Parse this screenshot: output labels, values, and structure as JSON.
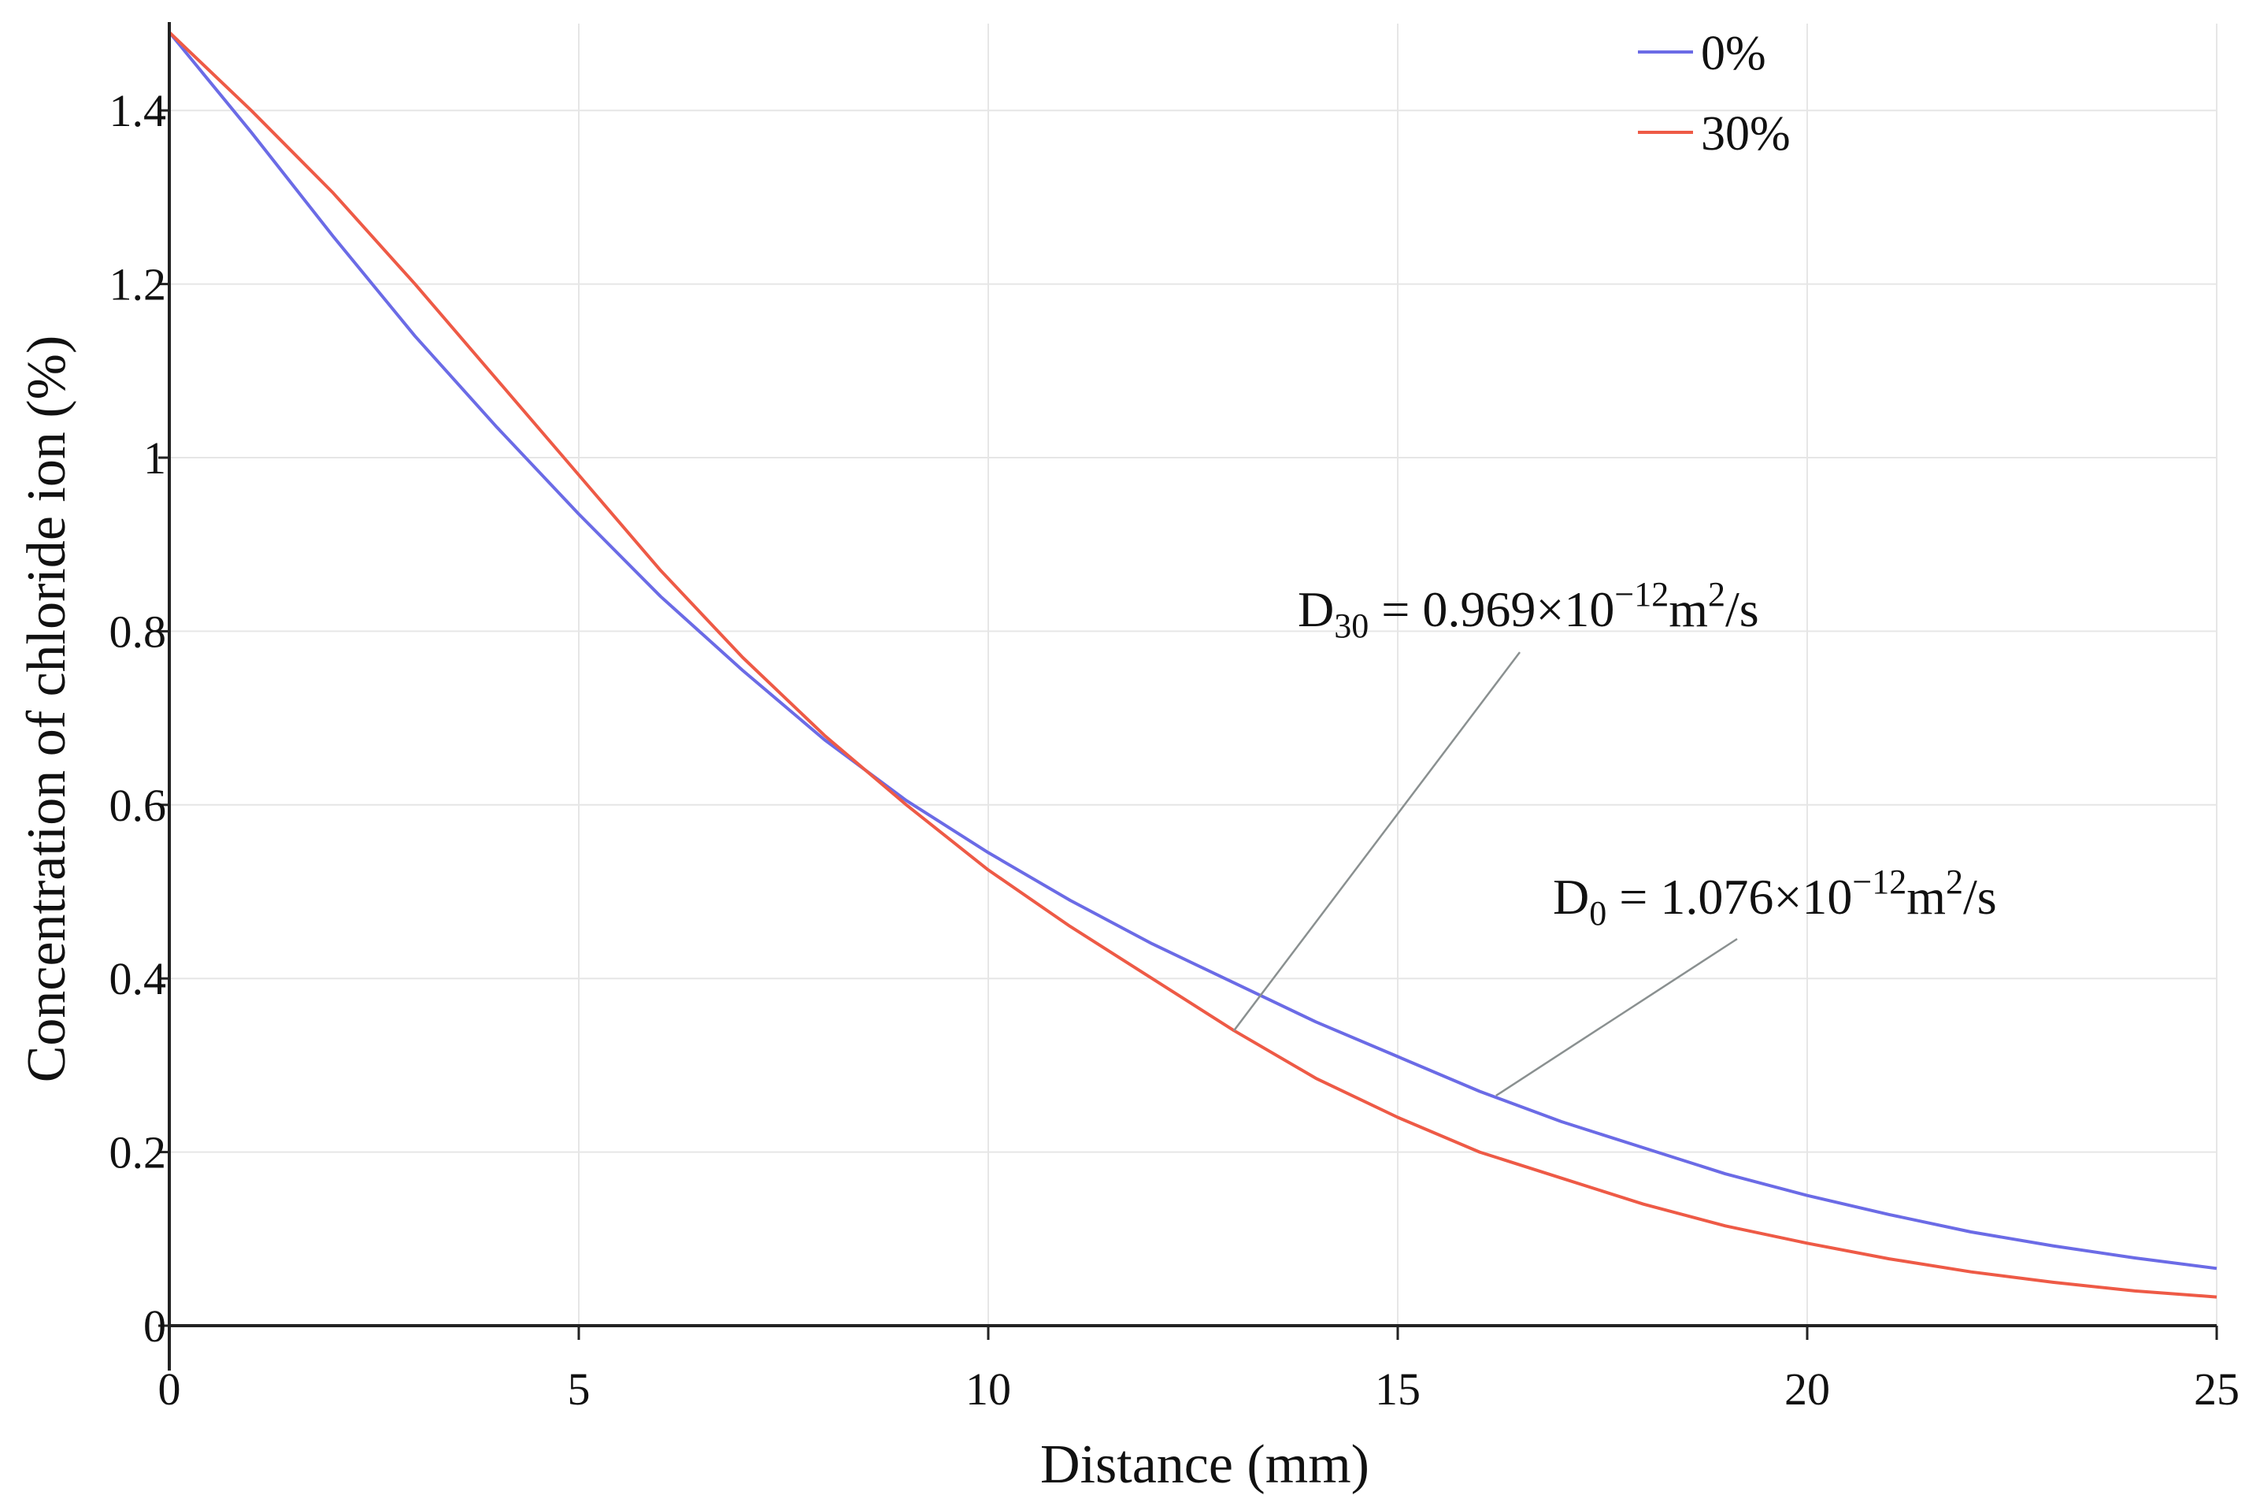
{
  "chart_data": {
    "type": "line",
    "title": "",
    "xlabel": "Distance (mm)",
    "ylabel": "Concentration of chloride ion (%)",
    "xlim": [
      0,
      25
    ],
    "ylim": [
      0,
      1.5
    ],
    "xticks": [
      0,
      5,
      10,
      15,
      20,
      25
    ],
    "xtick_labels": [
      "0",
      "5",
      "10",
      "15",
      "20",
      "25"
    ],
    "yticks": [
      0,
      0.2,
      0.4,
      0.6,
      0.8,
      1.0,
      1.2,
      1.4
    ],
    "ytick_labels": [
      "0",
      "0.2",
      "0.4",
      "0.6",
      "0.8",
      "1",
      "1.2",
      "1.4"
    ],
    "grid": true,
    "legend_position": "top-right",
    "series": [
      {
        "name": "0%",
        "color": "#6b6be6",
        "x": [
          0,
          1,
          2,
          3,
          4,
          5,
          6,
          7,
          8,
          9,
          10,
          11,
          12,
          13,
          14,
          15,
          16,
          17,
          18,
          19,
          20,
          21,
          22,
          23,
          24,
          25
        ],
        "values": [
          1.49,
          1.375,
          1.255,
          1.14,
          1.035,
          0.935,
          0.84,
          0.755,
          0.675,
          0.605,
          0.545,
          0.49,
          0.44,
          0.395,
          0.35,
          0.31,
          0.27,
          0.235,
          0.205,
          0.175,
          0.15,
          0.128,
          0.108,
          0.092,
          0.078,
          0.066
        ]
      },
      {
        "name": "30%",
        "color": "#ee5a46",
        "x": [
          0,
          1,
          2,
          3,
          4,
          5,
          6,
          7,
          8,
          9,
          10,
          11,
          12,
          13,
          14,
          15,
          16,
          17,
          18,
          19,
          20,
          21,
          22,
          23,
          24,
          25
        ],
        "values": [
          1.49,
          1.4,
          1.305,
          1.2,
          1.09,
          0.98,
          0.87,
          0.77,
          0.68,
          0.6,
          0.525,
          0.46,
          0.4,
          0.34,
          0.285,
          0.24,
          0.2,
          0.17,
          0.14,
          0.115,
          0.095,
          0.077,
          0.062,
          0.05,
          0.04,
          0.033
        ]
      }
    ],
    "annotations": [
      {
        "id": "d30",
        "symbol": "D",
        "subscript": "30",
        "text": " = 0.969×10",
        "exponent": "−12",
        "unit": "m",
        "unit_exponent": "2",
        "unit_tail": "/s",
        "series": "30%",
        "point_x": 13.0,
        "point_y": 0.34
      },
      {
        "id": "d0",
        "symbol": "D",
        "subscript": "0",
        "text": " = 1.076×10",
        "exponent": "−12",
        "unit": "m",
        "unit_exponent": "2",
        "unit_tail": "/s",
        "series": "0%",
        "point_x": 16.2,
        "point_y": 0.265
      }
    ]
  }
}
